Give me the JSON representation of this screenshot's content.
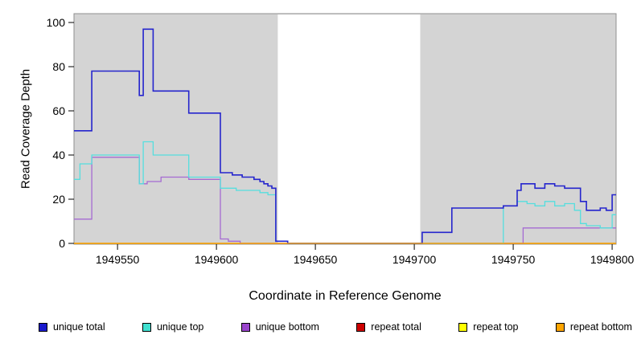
{
  "chart_data": {
    "type": "line",
    "title": "",
    "xlabel": "Coordinate in Reference Genome",
    "ylabel": "Read Coverage Depth",
    "xlim": [
      1949528,
      1949802
    ],
    "ylim": [
      0,
      100
    ],
    "x_ticks": [
      1949550,
      1949600,
      1949650,
      1949700,
      1949750,
      1949800
    ],
    "y_ticks": [
      0,
      20,
      40,
      60,
      80,
      100
    ],
    "grid": false,
    "legend_position": "bottom",
    "plot_background": "#d4d4d4",
    "highlight_band": {
      "x_start": 1949631,
      "x_end": 1949703,
      "color": "#ffffff"
    },
    "series": [
      {
        "name": "repeat total",
        "color": "#cc0000",
        "line_width": 1.2,
        "step_points": [
          [
            1949528,
            0
          ],
          [
            1949802,
            0
          ]
        ]
      },
      {
        "name": "repeat top",
        "color": "#ffff00",
        "line_width": 1.2,
        "step_points": [
          [
            1949528,
            0
          ],
          [
            1949802,
            0
          ]
        ]
      },
      {
        "name": "unique bottom",
        "color": "#a56ad2",
        "line_width": 1.3,
        "step_points": [
          [
            1949528,
            11
          ],
          [
            1949537,
            39
          ],
          [
            1949561,
            27
          ],
          [
            1949565,
            28
          ],
          [
            1949572,
            30
          ],
          [
            1949586,
            29
          ],
          [
            1949602,
            2
          ],
          [
            1949606,
            1
          ],
          [
            1949612,
            0
          ],
          [
            1949755,
            7
          ],
          [
            1949790,
            7
          ],
          [
            1949802,
            7
          ]
        ]
      },
      {
        "name": "unique top",
        "color": "#55dede",
        "line_width": 1.3,
        "step_points": [
          [
            1949528,
            29
          ],
          [
            1949531,
            36
          ],
          [
            1949537,
            40
          ],
          [
            1949561,
            27
          ],
          [
            1949563,
            46
          ],
          [
            1949568,
            40
          ],
          [
            1949586,
            30
          ],
          [
            1949602,
            25
          ],
          [
            1949610,
            24
          ],
          [
            1949622,
            23
          ],
          [
            1949626,
            22
          ],
          [
            1949630,
            1
          ],
          [
            1949636,
            0
          ],
          [
            1949745,
            17
          ],
          [
            1949752,
            19
          ],
          [
            1949757,
            18
          ],
          [
            1949761,
            17
          ],
          [
            1949766,
            19
          ],
          [
            1949771,
            17
          ],
          [
            1949776,
            18
          ],
          [
            1949781,
            15
          ],
          [
            1949784,
            9
          ],
          [
            1949787,
            8
          ],
          [
            1949794,
            7
          ],
          [
            1949800,
            13
          ]
        ]
      },
      {
        "name": "unique total",
        "color": "#2525cd",
        "line_width": 1.6,
        "step_points": [
          [
            1949528,
            51
          ],
          [
            1949537,
            78
          ],
          [
            1949561,
            67
          ],
          [
            1949563,
            97
          ],
          [
            1949568,
            69
          ],
          [
            1949586,
            59
          ],
          [
            1949602,
            32
          ],
          [
            1949608,
            31
          ],
          [
            1949613,
            30
          ],
          [
            1949619,
            29
          ],
          [
            1949622,
            28
          ],
          [
            1949624,
            27
          ],
          [
            1949626,
            26
          ],
          [
            1949628,
            25
          ],
          [
            1949630,
            1
          ],
          [
            1949636,
            0
          ],
          [
            1949704,
            5
          ],
          [
            1949719,
            16
          ],
          [
            1949745,
            17
          ],
          [
            1949752,
            24
          ],
          [
            1949754,
            27
          ],
          [
            1949761,
            25
          ],
          [
            1949766,
            27
          ],
          [
            1949771,
            26
          ],
          [
            1949776,
            25
          ],
          [
            1949784,
            19
          ],
          [
            1949787,
            15
          ],
          [
            1949794,
            16
          ],
          [
            1949797,
            15
          ],
          [
            1949800,
            22
          ]
        ]
      },
      {
        "name": "repeat bottom",
        "color": "#ffa500",
        "line_width": 1.3,
        "step_points": [
          [
            1949528,
            0
          ],
          [
            1949802,
            0
          ]
        ]
      }
    ],
    "legend": [
      {
        "label": "unique total",
        "color": "#1a1acd"
      },
      {
        "label": "unique top",
        "color": "#40e0d0"
      },
      {
        "label": "unique bottom",
        "color": "#9944cc"
      },
      {
        "label": "repeat total",
        "color": "#cc0000"
      },
      {
        "label": "repeat top",
        "color": "#ffff00"
      },
      {
        "label": "repeat bottom",
        "color": "#ffa500"
      }
    ]
  }
}
